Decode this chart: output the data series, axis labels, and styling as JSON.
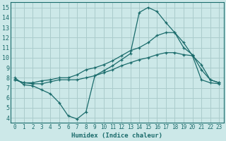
{
  "xlabel": "Humidex (Indice chaleur)",
  "bg_color": "#cce8e8",
  "grid_color": "#aacccc",
  "line_color": "#1a6b6b",
  "xlim": [
    -0.5,
    23.5
  ],
  "ylim": [
    3.5,
    15.5
  ],
  "xticks": [
    0,
    1,
    2,
    3,
    4,
    5,
    6,
    7,
    8,
    9,
    10,
    11,
    12,
    13,
    14,
    15,
    16,
    17,
    18,
    19,
    20,
    21,
    22,
    23
  ],
  "yticks": [
    4,
    5,
    6,
    7,
    8,
    9,
    10,
    11,
    12,
    13,
    14,
    15
  ],
  "line1_x": [
    0,
    1,
    2,
    3,
    4,
    5,
    6,
    7,
    8,
    9,
    10,
    11,
    12,
    13,
    14,
    15,
    16,
    17,
    18,
    19,
    20,
    21,
    22,
    23
  ],
  "line1_y": [
    8.0,
    7.3,
    7.2,
    6.8,
    6.4,
    5.5,
    4.2,
    3.9,
    4.6,
    8.2,
    8.7,
    9.2,
    9.8,
    10.4,
    14.5,
    15.0,
    14.6,
    13.5,
    12.5,
    11.5,
    10.2,
    9.3,
    7.8,
    7.5
  ],
  "line2_x": [
    0,
    1,
    2,
    3,
    4,
    5,
    6,
    7,
    8,
    9,
    10,
    11,
    12,
    13,
    14,
    15,
    16,
    17,
    18,
    19,
    20,
    21,
    22,
    23
  ],
  "line2_y": [
    7.8,
    7.5,
    7.5,
    7.7,
    7.8,
    8.0,
    8.0,
    8.3,
    8.8,
    9.0,
    9.3,
    9.7,
    10.2,
    10.7,
    11.0,
    11.5,
    12.2,
    12.5,
    12.5,
    11.0,
    10.3,
    8.8,
    7.8,
    7.5
  ],
  "line3_x": [
    0,
    1,
    2,
    3,
    4,
    5,
    6,
    7,
    8,
    9,
    10,
    11,
    12,
    13,
    14,
    15,
    16,
    17,
    18,
    19,
    20,
    21,
    22,
    23
  ],
  "line3_y": [
    7.8,
    7.5,
    7.4,
    7.4,
    7.6,
    7.8,
    7.8,
    7.8,
    8.0,
    8.2,
    8.5,
    8.8,
    9.2,
    9.5,
    9.8,
    10.0,
    10.3,
    10.5,
    10.5,
    10.3,
    10.2,
    7.8,
    7.5,
    7.4
  ]
}
